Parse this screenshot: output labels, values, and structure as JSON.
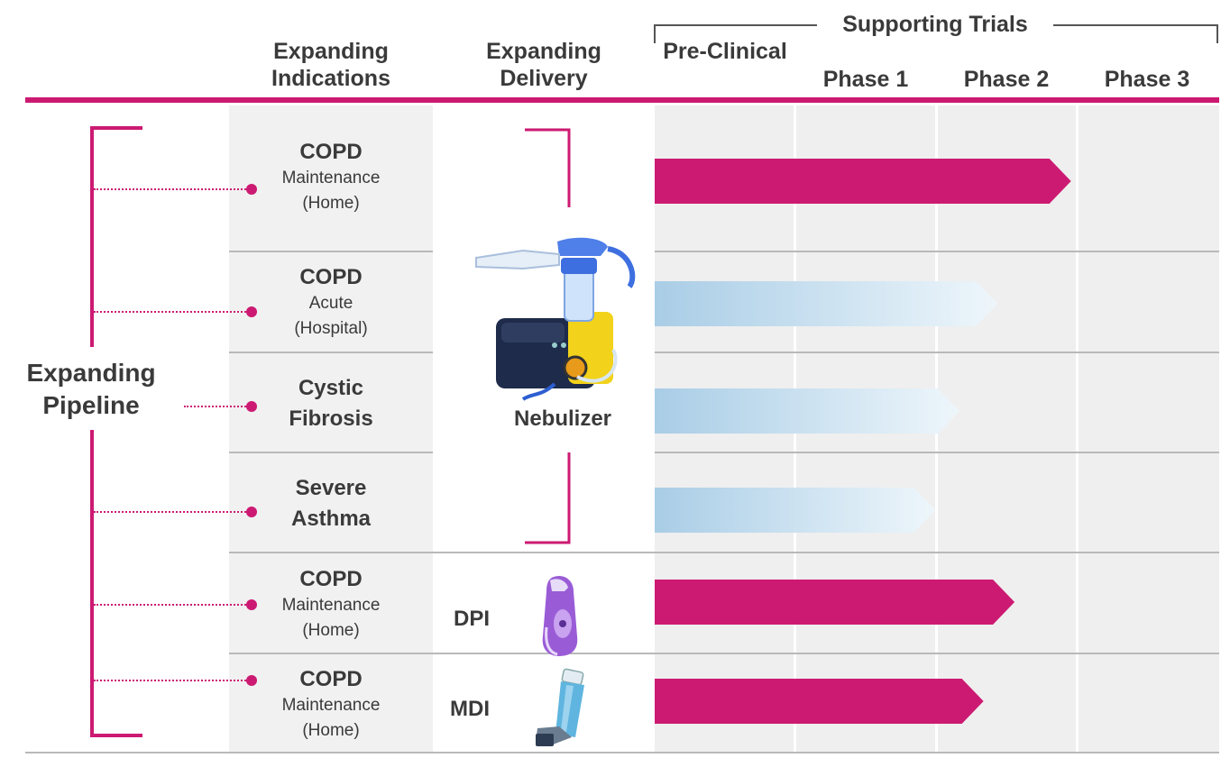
{
  "headers": {
    "indications": "Expanding Indications",
    "delivery": "Expanding Delivery",
    "supporting_trials": "Supporting Trials",
    "phases": [
      "Pre-Clinical",
      "Phase 1",
      "Phase 2",
      "Phase 3"
    ]
  },
  "pipeline_label": "Expanding Pipeline",
  "rows": [
    {
      "main": "COPD",
      "sub": "Maintenance (Home)",
      "progress_phases": 2.95,
      "style": "solid"
    },
    {
      "main": "COPD",
      "sub": "Acute (Hospital)",
      "progress_phases": 2.43,
      "style": "gradient"
    },
    {
      "main": "Cystic Fibrosis",
      "sub": "",
      "progress_phases": 2.16,
      "style": "gradient"
    },
    {
      "main": "Severe Asthma",
      "sub": "",
      "progress_phases": 1.99,
      "style": "gradient"
    },
    {
      "main": "COPD",
      "sub": "Maintenance (Home)",
      "progress_phases": 2.55,
      "style": "solid"
    },
    {
      "main": "COPD",
      "sub": "Maintenance (Home)",
      "progress_phases": 2.33,
      "style": "solid"
    }
  ],
  "delivery": {
    "nebulizer": "Nebulizer",
    "dpi": "DPI",
    "mdi": "MDI"
  },
  "colors": {
    "accent": "#cc1a72",
    "gradient_start": "#a9cde6",
    "gradient_end": "#eef6fb",
    "grid": "#efefef",
    "indication_bg": "#f1f1f1",
    "text": "#3a3a3a"
  },
  "icons": [
    "nebulizer-device-icon",
    "dpi-inhaler-icon",
    "mdi-inhaler-icon"
  ]
}
